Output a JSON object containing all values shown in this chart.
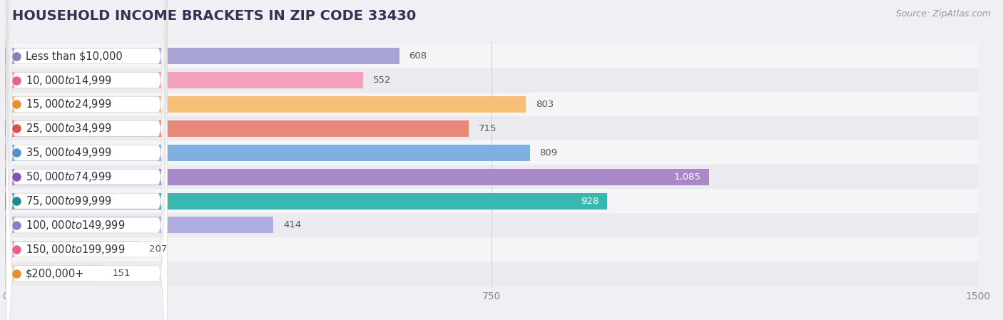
{
  "title": "HOUSEHOLD INCOME BRACKETS IN ZIP CODE 33430",
  "source": "Source: ZipAtlas.com",
  "categories": [
    "Less than $10,000",
    "$10,000 to $14,999",
    "$15,000 to $24,999",
    "$25,000 to $34,999",
    "$35,000 to $49,999",
    "$50,000 to $74,999",
    "$75,000 to $99,999",
    "$100,000 to $149,999",
    "$150,000 to $199,999",
    "$200,000+"
  ],
  "values": [
    608,
    552,
    803,
    715,
    809,
    1085,
    928,
    414,
    207,
    151
  ],
  "bar_colors": [
    "#a8a4d4",
    "#f4a0bc",
    "#f8bf78",
    "#e88878",
    "#80b0e0",
    "#a888c8",
    "#38b8b0",
    "#b0aee0",
    "#f4a0bc",
    "#f8d09c"
  ],
  "circle_colors": [
    "#8880c0",
    "#e8608c",
    "#e89030",
    "#d85050",
    "#5090d0",
    "#8850b0",
    "#208888",
    "#8880c0",
    "#e8608c",
    "#e89030"
  ],
  "xlim": [
    0,
    1500
  ],
  "xticks": [
    0,
    750,
    1500
  ],
  "background_color": "#f0f0f4",
  "row_bg_even": "#f5f5f7",
  "row_bg_odd": "#ebebef",
  "title_fontsize": 14,
  "label_fontsize": 10.5,
  "value_fontsize": 9.5,
  "source_fontsize": 9,
  "inside_threshold": 900
}
